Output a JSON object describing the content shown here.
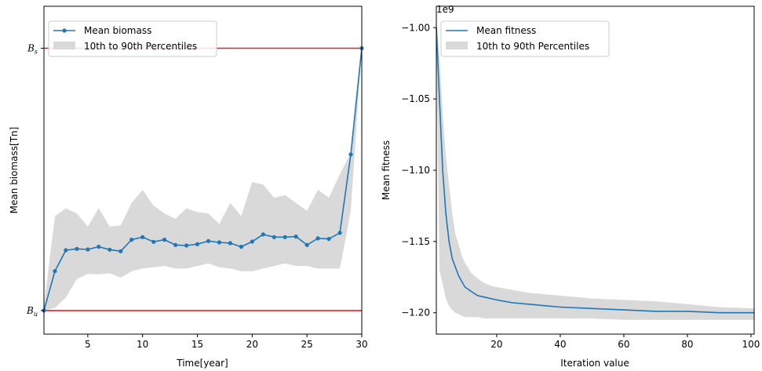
{
  "colors": {
    "line": "#1f77b4",
    "band": "#d9d9d9",
    "ref": "#d62728",
    "axis": "#000000"
  },
  "chart_data": [
    {
      "type": "line",
      "xlabel": "Time[year]",
      "ylabel": "Mean biomass[Tn]",
      "xlim": [
        1,
        30
      ],
      "ylim": [
        -0.09,
        1.16
      ],
      "xticks": [
        5,
        10,
        15,
        20,
        25,
        30
      ],
      "y_ticks": [
        {
          "main": "B",
          "sub": "u",
          "value": 0
        },
        {
          "main": "B",
          "sub": "s",
          "value": 1
        }
      ],
      "reference_lines": [
        {
          "label": "B_s",
          "y": 1
        },
        {
          "label": "B_u",
          "y": 0
        }
      ],
      "legend_position": "upper-left",
      "legend": [
        "Mean biomass",
        "10th to 90th Percentiles"
      ],
      "series": [
        {
          "name": "Mean biomass",
          "marker": "circle",
          "x": [
            1,
            2,
            3,
            4,
            5,
            6,
            7,
            8,
            9,
            10,
            11,
            12,
            13,
            14,
            15,
            16,
            17,
            18,
            19,
            20,
            21,
            22,
            23,
            24,
            25,
            26,
            27,
            28,
            29,
            30
          ],
          "y": [
            0.0,
            0.15,
            0.23,
            0.235,
            0.233,
            0.243,
            0.232,
            0.226,
            0.27,
            0.28,
            0.262,
            0.27,
            0.25,
            0.248,
            0.253,
            0.265,
            0.26,
            0.257,
            0.243,
            0.263,
            0.29,
            0.28,
            0.28,
            0.282,
            0.25,
            0.275,
            0.273,
            0.296,
            0.595,
            1.0
          ]
        },
        {
          "name": "10th to 90th Percentiles",
          "type": "band",
          "x": [
            1,
            2,
            3,
            4,
            5,
            6,
            7,
            8,
            9,
            10,
            11,
            12,
            13,
            14,
            15,
            16,
            17,
            18,
            19,
            20,
            21,
            22,
            23,
            24,
            25,
            26,
            27,
            28,
            29,
            30
          ],
          "low": [
            0.0,
            0.01,
            0.05,
            0.12,
            0.14,
            0.138,
            0.142,
            0.125,
            0.15,
            0.16,
            0.165,
            0.17,
            0.16,
            0.16,
            0.17,
            0.18,
            0.165,
            0.16,
            0.15,
            0.15,
            0.16,
            0.17,
            0.18,
            0.17,
            0.17,
            0.16,
            0.16,
            0.16,
            0.38,
            1.0
          ],
          "high": [
            0.02,
            0.36,
            0.39,
            0.37,
            0.32,
            0.39,
            0.32,
            0.325,
            0.41,
            0.46,
            0.4,
            0.37,
            0.35,
            0.39,
            0.375,
            0.37,
            0.33,
            0.41,
            0.36,
            0.49,
            0.48,
            0.43,
            0.44,
            0.41,
            0.38,
            0.46,
            0.43,
            0.52,
            0.6,
            1.0
          ]
        }
      ]
    },
    {
      "type": "line",
      "xlabel": "Iteration value",
      "ylabel": "Mean fitness",
      "offset_text": "1e9",
      "xlim": [
        1,
        101
      ],
      "ylim": [
        -1.215,
        -0.985
      ],
      "xticks": [
        20,
        40,
        60,
        80,
        100
      ],
      "yticks": [
        -1.0,
        -1.05,
        -1.1,
        -1.15,
        -1.2
      ],
      "ytick_labels": [
        "−1.00",
        "−1.05",
        "−1.10",
        "−1.15",
        "−1.20"
      ],
      "legend_position": "upper-left",
      "legend": [
        "Mean fitness",
        "10th to 90th Percentiles"
      ],
      "series": [
        {
          "name": "Mean fitness",
          "x": [
            1,
            2,
            3,
            4,
            5,
            6,
            7,
            8,
            9,
            10,
            12,
            14,
            16,
            18,
            20,
            25,
            30,
            35,
            40,
            50,
            60,
            70,
            80,
            90,
            101
          ],
          "y": [
            -1.0,
            -1.05,
            -1.1,
            -1.13,
            -1.15,
            -1.162,
            -1.168,
            -1.174,
            -1.178,
            -1.182,
            -1.185,
            -1.188,
            -1.189,
            -1.19,
            -1.191,
            -1.193,
            -1.194,
            -1.195,
            -1.196,
            -1.197,
            -1.198,
            -1.199,
            -1.199,
            -1.2,
            -1.2
          ]
        },
        {
          "name": "10th to 90th Percentiles",
          "type": "band",
          "x": [
            1,
            2,
            3,
            4,
            5,
            6,
            7,
            8,
            9,
            10,
            12,
            14,
            16,
            18,
            20,
            25,
            30,
            35,
            40,
            50,
            60,
            70,
            80,
            90,
            101
          ],
          "high": [
            -0.995,
            -1.02,
            -1.06,
            -1.09,
            -1.11,
            -1.13,
            -1.145,
            -1.152,
            -1.16,
            -1.165,
            -1.172,
            -1.176,
            -1.179,
            -1.181,
            -1.182,
            -1.184,
            -1.186,
            -1.187,
            -1.188,
            -1.19,
            -1.191,
            -1.192,
            -1.194,
            -1.196,
            -1.197
          ],
          "low": [
            -1.005,
            -1.17,
            -1.18,
            -1.19,
            -1.195,
            -1.198,
            -1.2,
            -1.201,
            -1.202,
            -1.203,
            -1.203,
            -1.203,
            -1.204,
            -1.204,
            -1.204,
            -1.204,
            -1.204,
            -1.204,
            -1.204,
            -1.204,
            -1.205,
            -1.205,
            -1.205,
            -1.205,
            -1.205
          ]
        }
      ]
    }
  ]
}
